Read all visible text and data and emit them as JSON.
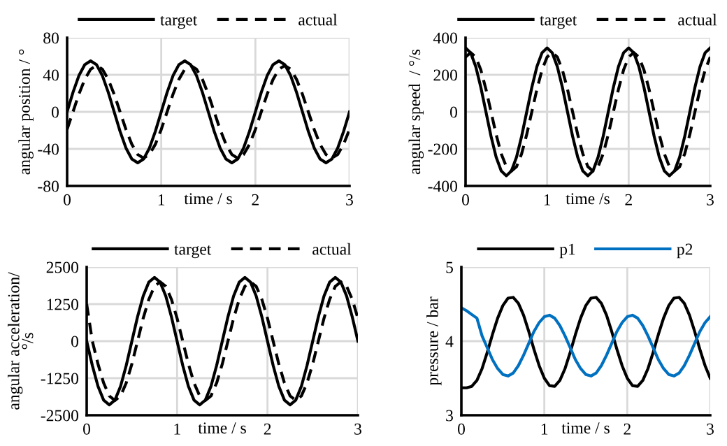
{
  "chart_data": [
    {
      "type": "line",
      "xlabel": "time / s",
      "ylabel": "angular position / °",
      "xlim": [
        0,
        3
      ],
      "xticks": [
        0,
        1,
        2,
        3
      ],
      "ylim": [
        -80,
        80
      ],
      "yticks": [
        -80,
        -40,
        0,
        40,
        80
      ],
      "grid": true,
      "legend": "top",
      "x": [
        0,
        0.0625,
        0.125,
        0.1875,
        0.25,
        0.3125,
        0.375,
        0.4375,
        0.5,
        0.5625,
        0.625,
        0.6875,
        0.75,
        0.8125,
        0.875,
        0.9375,
        1,
        1.0625,
        1.125,
        1.1875,
        1.25,
        1.3125,
        1.375,
        1.4375,
        1.5,
        1.5625,
        1.625,
        1.6875,
        1.75,
        1.8125,
        1.875,
        1.9375,
        2,
        2.0625,
        2.125,
        2.1875,
        2.25,
        2.3125,
        2.375,
        2.4375,
        2.5,
        2.5625,
        2.625,
        2.6875,
        2.75,
        2.8125,
        2.875,
        2.9375,
        3
      ],
      "series": [
        {
          "name": "target",
          "color": "#000000",
          "line_style": "solid",
          "values": [
            0,
            21,
            39,
            51,
            55,
            51,
            39,
            21,
            0,
            -21,
            -39,
            -51,
            -55,
            -51,
            -39,
            -21,
            0,
            21,
            39,
            51,
            55,
            51,
            39,
            21,
            0,
            -21,
            -39,
            -51,
            -55,
            -51,
            -39,
            -21,
            0,
            21,
            39,
            51,
            55,
            51,
            39,
            21,
            0,
            -21,
            -39,
            -51,
            -55,
            -51,
            -39,
            -21,
            0
          ]
        },
        {
          "name": "actual",
          "color": "#000000",
          "line_style": "dashed",
          "values": [
            -19,
            0,
            19,
            35,
            46,
            50,
            46,
            35,
            19,
            0,
            -19,
            -35,
            -46,
            -50,
            -46,
            -35,
            -19,
            0,
            19,
            35,
            46,
            50,
            46,
            35,
            19,
            0,
            -19,
            -35,
            -46,
            -50,
            -46,
            -35,
            -19,
            0,
            19,
            35,
            46,
            50,
            46,
            35,
            19,
            0,
            -19,
            -35,
            -46,
            -50,
            -46,
            -35,
            -19
          ]
        }
      ]
    },
    {
      "type": "line",
      "xlabel": "time /s",
      "ylabel": "angular speed  / °/s",
      "xlim": [
        0,
        3
      ],
      "xticks": [
        0,
        1,
        2,
        3
      ],
      "ylim": [
        -400,
        400
      ],
      "yticks": [
        -400,
        -200,
        0,
        200,
        400
      ],
      "grid": true,
      "legend": "top",
      "x": [
        0,
        0.0625,
        0.125,
        0.1875,
        0.25,
        0.3125,
        0.375,
        0.4375,
        0.5,
        0.5625,
        0.625,
        0.6875,
        0.75,
        0.8125,
        0.875,
        0.9375,
        1,
        1.0625,
        1.125,
        1.1875,
        1.25,
        1.3125,
        1.375,
        1.4375,
        1.5,
        1.5625,
        1.625,
        1.6875,
        1.75,
        1.8125,
        1.875,
        1.9375,
        2,
        2.0625,
        2.125,
        2.1875,
        2.25,
        2.3125,
        2.375,
        2.4375,
        2.5,
        2.5625,
        2.625,
        2.6875,
        2.75,
        2.8125,
        2.875,
        2.9375,
        3
      ],
      "series": [
        {
          "name": "target",
          "color": "#000000",
          "line_style": "solid",
          "values": [
            345,
            319,
            244,
            132,
            0,
            -132,
            -244,
            -319,
            -345,
            -319,
            -244,
            -132,
            0,
            132,
            244,
            319,
            345,
            319,
            244,
            132,
            0,
            -132,
            -244,
            -319,
            -345,
            -319,
            -244,
            -132,
            0,
            132,
            244,
            319,
            345,
            319,
            244,
            132,
            0,
            -132,
            -244,
            -319,
            -345,
            -319,
            -244,
            -132,
            0,
            132,
            244,
            319,
            345
          ]
        },
        {
          "name": "actual",
          "color": "#000000",
          "line_style": "dashed",
          "values": [
            296,
            320,
            296,
            226,
            122,
            0,
            -122,
            -226,
            -296,
            -320,
            -296,
            -226,
            -122,
            0,
            122,
            226,
            296,
            320,
            296,
            226,
            122,
            0,
            -122,
            -226,
            -296,
            -320,
            -296,
            -226,
            -122,
            0,
            122,
            226,
            296,
            320,
            296,
            226,
            122,
            0,
            -122,
            -226,
            -296,
            -320,
            -296,
            -226,
            -122,
            0,
            122,
            226,
            296
          ]
        }
      ]
    },
    {
      "type": "line",
      "xlabel": "time / s",
      "ylabel": "angular acceleration/\n°/s",
      "xlim": [
        0,
        3
      ],
      "xticks": [
        0,
        1,
        2,
        3
      ],
      "ylim": [
        -2500,
        2500
      ],
      "yticks": [
        -2500,
        -1250,
        0,
        1250,
        2500
      ],
      "grid": true,
      "legend": "top",
      "x": [
        0,
        0.0625,
        0.125,
        0.1875,
        0.25,
        0.3125,
        0.375,
        0.4375,
        0.5,
        0.5625,
        0.625,
        0.6875,
        0.75,
        0.8125,
        0.875,
        0.9375,
        1,
        1.0625,
        1.125,
        1.1875,
        1.25,
        1.3125,
        1.375,
        1.4375,
        1.5,
        1.5625,
        1.625,
        1.6875,
        1.75,
        1.8125,
        1.875,
        1.9375,
        2,
        2.0625,
        2.125,
        2.1875,
        2.25,
        2.3125,
        2.375,
        2.4375,
        2.5,
        2.5625,
        2.625,
        2.6875,
        2.75,
        2.8125,
        2.875,
        2.9375,
        3
      ],
      "series": [
        {
          "name": "target",
          "color": "#000000",
          "line_style": "solid",
          "values": [
            0,
            -820,
            -1520,
            -1990,
            -2150,
            -1990,
            -1520,
            -820,
            0,
            820,
            1520,
            1990,
            2150,
            1990,
            1520,
            820,
            0,
            -820,
            -1520,
            -1990,
            -2150,
            -1990,
            -1520,
            -820,
            0,
            820,
            1520,
            1990,
            2150,
            1990,
            1520,
            820,
            0,
            -820,
            -1520,
            -1990,
            -2150,
            -1990,
            -1520,
            -820,
            0,
            820,
            1520,
            1990,
            2150,
            1990,
            1520,
            820,
            0
          ]
        },
        {
          "name": "actual",
          "color": "#000000",
          "line_style": "dashed",
          "values": [
            1250,
            0,
            -770,
            -1410,
            -1850,
            -2000,
            -1850,
            -1410,
            -770,
            0,
            770,
            1410,
            1850,
            2000,
            1850,
            1410,
            770,
            0,
            -770,
            -1410,
            -1850,
            -2000,
            -1850,
            -1410,
            -770,
            0,
            770,
            1410,
            1850,
            2000,
            1850,
            1410,
            770,
            0,
            -770,
            -1410,
            -1850,
            -2000,
            -1850,
            -1410,
            -770,
            0,
            770,
            1410,
            1850,
            2000,
            1850,
            1410,
            770
          ]
        }
      ]
    },
    {
      "type": "line",
      "xlabel": "time / s",
      "ylabel": "pressure / bar",
      "xlim": [
        0,
        3
      ],
      "xticks": [
        0,
        1,
        2,
        3
      ],
      "ylim": [
        3,
        5
      ],
      "yticks": [
        3,
        4,
        5
      ],
      "grid": true,
      "legend": "top",
      "x": [
        0,
        0.0625,
        0.125,
        0.1875,
        0.25,
        0.3125,
        0.375,
        0.4375,
        0.5,
        0.5625,
        0.625,
        0.6875,
        0.75,
        0.8125,
        0.875,
        0.9375,
        1,
        1.0625,
        1.125,
        1.1875,
        1.25,
        1.3125,
        1.375,
        1.4375,
        1.5,
        1.5625,
        1.625,
        1.6875,
        1.75,
        1.8125,
        1.875,
        1.9375,
        2,
        2.0625,
        2.125,
        2.1875,
        2.25,
        2.3125,
        2.375,
        2.4375,
        2.5,
        2.5625,
        2.625,
        2.6875,
        2.75,
        2.8125,
        2.875,
        2.9375,
        3
      ],
      "series": [
        {
          "name": "p1",
          "color": "#000000",
          "line_style": "solid",
          "values": [
            3.37,
            3.37,
            3.39,
            3.47,
            3.63,
            3.85,
            4.09,
            4.31,
            4.48,
            4.58,
            4.59,
            4.51,
            4.35,
            4.13,
            3.89,
            3.67,
            3.5,
            3.4,
            3.39,
            3.47,
            3.63,
            3.85,
            4.09,
            4.31,
            4.48,
            4.58,
            4.59,
            4.51,
            4.35,
            4.13,
            3.89,
            3.67,
            3.5,
            3.4,
            3.39,
            3.47,
            3.63,
            3.85,
            4.09,
            4.31,
            4.48,
            4.58,
            4.59,
            4.51,
            4.35,
            4.13,
            3.89,
            3.67,
            3.5
          ]
        },
        {
          "name": "p2",
          "color": "#0070c0",
          "line_style": "solid",
          "values": [
            4.45,
            4.41,
            4.36,
            4.31,
            4.07,
            3.91,
            3.75,
            3.63,
            3.55,
            3.53,
            3.57,
            3.67,
            3.81,
            3.97,
            4.13,
            4.25,
            4.33,
            4.35,
            4.31,
            4.21,
            4.07,
            3.91,
            3.75,
            3.63,
            3.55,
            3.53,
            3.57,
            3.67,
            3.81,
            3.97,
            4.13,
            4.25,
            4.33,
            4.35,
            4.31,
            4.21,
            4.07,
            3.91,
            3.75,
            3.63,
            3.55,
            3.53,
            3.57,
            3.67,
            3.81,
            3.97,
            4.13,
            4.25,
            4.33
          ]
        }
      ]
    }
  ]
}
